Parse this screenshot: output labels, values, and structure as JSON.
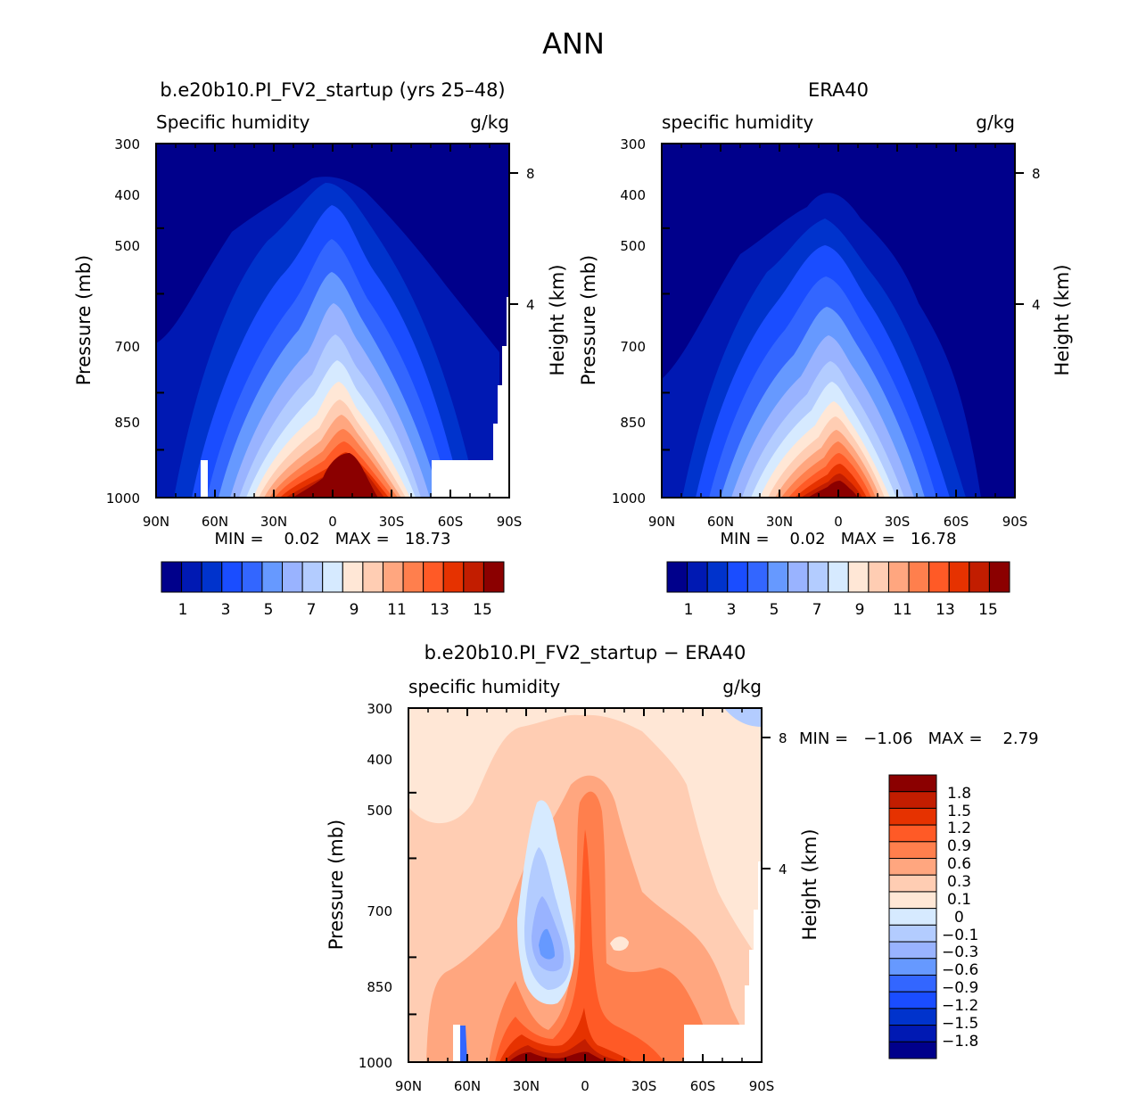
{
  "figure_title": "ANN",
  "colors": {
    "abs_scale": [
      "#00008b",
      "#0019b3",
      "#0033cc",
      "#1a4dff",
      "#3366ff",
      "#6699ff",
      "#99b3ff",
      "#b3ccff",
      "#d6eaff",
      "#ffe7d6",
      "#ffcdb3",
      "#ffa67f",
      "#ff7f4d",
      "#ff5a26",
      "#e63200",
      "#c21d00",
      "#8b0000"
    ],
    "diff_scale": [
      "#00008b",
      "#0019b3",
      "#0033cc",
      "#1a4dff",
      "#3366ff",
      "#6699ff",
      "#99b3ff",
      "#b3ccff",
      "#d6eaff",
      "#ffe7d6",
      "#ffcdb3",
      "#ffa67f",
      "#ff7f4d",
      "#ff5a26",
      "#e63200",
      "#c21d00",
      "#8b0000"
    ]
  },
  "chart_data": [
    {
      "type": "heatmap",
      "title": "b.e20b10.PI_FV2_startup (yrs 25–48)",
      "left_label": "Specific humidity",
      "right_label": "g/kg",
      "ylabel": "Pressure (mb)",
      "ylabel_right": "Height (km)",
      "x_ticks": [
        "90N",
        "60N",
        "30N",
        "0",
        "30S",
        "60S",
        "90S"
      ],
      "y_ticks": [
        "300",
        "400",
        "500",
        "700",
        "850",
        "1000"
      ],
      "right_ticks": [
        "8",
        "4"
      ],
      "stats_text": "MIN =    0.02   MAX =   18.73",
      "colorbar_labels": [
        "1",
        "3",
        "5",
        "7",
        "9",
        "11",
        "13",
        "15"
      ],
      "levels": [
        1,
        2,
        3,
        4,
        5,
        6,
        7,
        8,
        9,
        10,
        11,
        12,
        13,
        14,
        15,
        16
      ],
      "ylim": [
        1000,
        300
      ]
    },
    {
      "type": "heatmap",
      "title": "ERA40",
      "left_label": "specific humidity",
      "right_label": "g/kg",
      "ylabel": "Pressure (mb)",
      "ylabel_right": "Height (km)",
      "x_ticks": [
        "90N",
        "60N",
        "30N",
        "0",
        "30S",
        "60S",
        "90S"
      ],
      "y_ticks": [
        "300",
        "400",
        "500",
        "700",
        "850",
        "1000"
      ],
      "right_ticks": [
        "8",
        "4"
      ],
      "stats_text": "MIN =    0.02   MAX =   16.78",
      "colorbar_labels": [
        "1",
        "3",
        "5",
        "7",
        "9",
        "11",
        "13",
        "15"
      ],
      "levels": [
        1,
        2,
        3,
        4,
        5,
        6,
        7,
        8,
        9,
        10,
        11,
        12,
        13,
        14,
        15,
        16
      ],
      "ylim": [
        1000,
        300
      ]
    },
    {
      "type": "heatmap",
      "title": "b.e20b10.PI_FV2_startup − ERA40",
      "left_label": "specific humidity",
      "right_label": "g/kg",
      "ylabel": "Pressure (mb)",
      "ylabel_right": "Height (km)",
      "x_ticks": [
        "90N",
        "60N",
        "30N",
        "0",
        "30S",
        "60S",
        "90S"
      ],
      "y_ticks": [
        "300",
        "400",
        "500",
        "700",
        "850",
        "1000"
      ],
      "right_ticks": [
        "8",
        "4"
      ],
      "stats_text": "MIN =   −1.06   MAX =    2.79",
      "colorbar_labels": [
        "1.8",
        "1.5",
        "1.2",
        "0.9",
        "0.6",
        "0.3",
        "0.1",
        "0",
        "−0.1",
        "−0.3",
        "−0.6",
        "−0.9",
        "−1.2",
        "−1.5",
        "−1.8"
      ],
      "levels": [
        -1.8,
        -1.5,
        -1.2,
        -0.9,
        -0.6,
        -0.3,
        -0.1,
        0,
        0.1,
        0.3,
        0.6,
        0.9,
        1.2,
        1.5,
        1.8
      ],
      "ylim": [
        1000,
        300
      ]
    }
  ]
}
